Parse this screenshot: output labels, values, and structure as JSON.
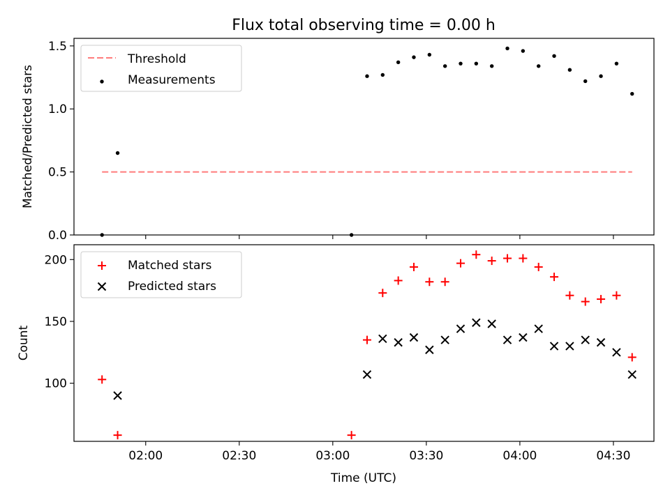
{
  "title": "Flux total observing time = 0.00 h",
  "chart_data": [
    {
      "type": "scatter",
      "ylabel": "Matched/Predicted stars",
      "ylim": [
        0,
        1.56
      ],
      "yticks": [
        0,
        0.5,
        1.0,
        1.5
      ],
      "ytick_labels": [
        "0.0",
        "0.5",
        "1.0",
        "1.5"
      ],
      "xlim": [
        "01:37",
        "04:43"
      ],
      "legend_position": "top-left",
      "series": [
        {
          "name": "Threshold",
          "kind": "dashed-line",
          "color": "#ff7b7b",
          "x": [
            "01:46",
            "04:36"
          ],
          "y": [
            0.5,
            0.5
          ]
        },
        {
          "name": "Measurements",
          "kind": "dot",
          "color": "#000000",
          "x": [
            "01:46",
            "01:51",
            "03:06",
            "03:11",
            "03:16",
            "03:21",
            "03:26",
            "03:31",
            "03:36",
            "03:41",
            "03:46",
            "03:51",
            "03:56",
            "04:01",
            "04:06",
            "04:11",
            "04:16",
            "04:21",
            "04:26",
            "04:31",
            "04:36"
          ],
          "y": [
            0.0,
            0.65,
            0.0,
            1.26,
            1.27,
            1.37,
            1.41,
            1.43,
            1.34,
            1.36,
            1.36,
            1.34,
            1.48,
            1.46,
            1.34,
            1.42,
            1.31,
            1.22,
            1.26,
            1.36,
            1.12
          ]
        }
      ]
    },
    {
      "type": "scatter",
      "ylabel": "Count",
      "xlabel": "Time (UTC)",
      "ylim": [
        53,
        212
      ],
      "yticks": [
        100,
        150,
        200
      ],
      "ytick_labels": [
        "100",
        "150",
        "200"
      ],
      "xlim": [
        "01:37",
        "04:43"
      ],
      "xticks": [
        "02:00",
        "02:30",
        "03:00",
        "03:30",
        "04:00",
        "04:30"
      ],
      "xtick_labels": [
        "02:00",
        "02:30",
        "03:00",
        "03:30",
        "04:00",
        "04:30"
      ],
      "legend_position": "top-left",
      "series": [
        {
          "name": "Matched stars",
          "kind": "plus",
          "color": "#ff0000",
          "x": [
            "01:46",
            "01:51",
            "03:06",
            "03:11",
            "03:16",
            "03:21",
            "03:26",
            "03:31",
            "03:36",
            "03:41",
            "03:46",
            "03:51",
            "03:56",
            "04:01",
            "04:06",
            "04:11",
            "04:16",
            "04:21",
            "04:26",
            "04:31",
            "04:36"
          ],
          "y": [
            103,
            58,
            58,
            135,
            173,
            183,
            194,
            182,
            182,
            197,
            204,
            199,
            201,
            201,
            194,
            186,
            171,
            166,
            168,
            171,
            121
          ]
        },
        {
          "name": "Predicted stars",
          "kind": "cross",
          "color": "#000000",
          "x": [
            "01:51",
            "03:11",
            "03:16",
            "03:21",
            "03:26",
            "03:31",
            "03:36",
            "03:41",
            "03:46",
            "03:51",
            "03:56",
            "04:01",
            "04:06",
            "04:11",
            "04:16",
            "04:21",
            "04:26",
            "04:31",
            "04:36"
          ],
          "y": [
            90,
            107,
            136,
            133,
            137,
            127,
            135,
            144,
            149,
            148,
            135,
            137,
            144,
            130,
            130,
            135,
            133,
            125,
            107
          ]
        }
      ]
    }
  ]
}
